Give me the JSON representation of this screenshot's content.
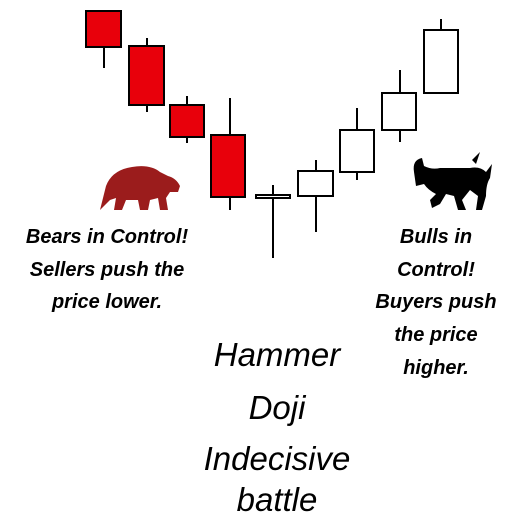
{
  "bears_label": {
    "lines": [
      "Bears in Control!",
      "Sellers push the",
      "price lower."
    ]
  },
  "bulls_label": {
    "lines": [
      "Bulls in",
      "Control!",
      "Buyers push",
      "the price",
      "higher."
    ]
  },
  "center_label": {
    "lines": [
      "Hammer",
      "Doji",
      "Indecisive",
      "battle"
    ]
  }
}
